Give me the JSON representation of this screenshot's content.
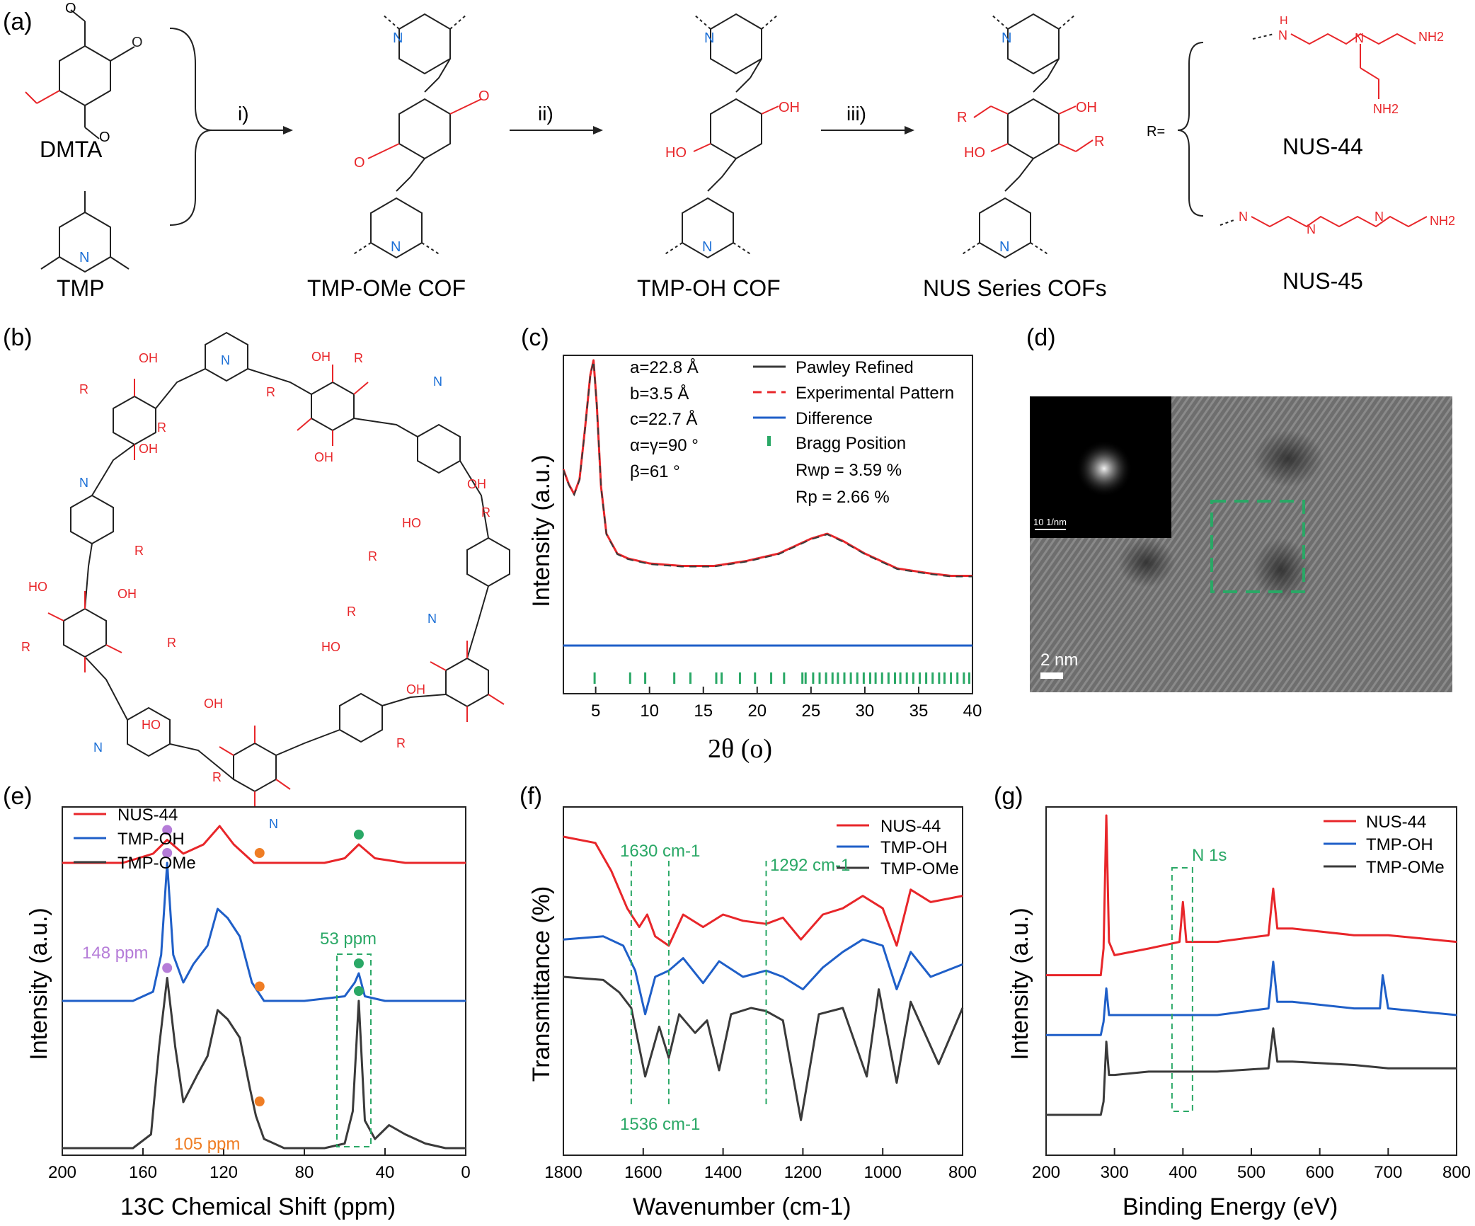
{
  "panels": {
    "a": "(a)",
    "b": "(b)",
    "c": "(c)",
    "d": "(d)",
    "e": "(e)",
    "f": "(f)",
    "g": "(g)"
  },
  "scheme": {
    "dmta": "DMTA",
    "tmp": "TMP",
    "step1": "i)",
    "step2": "ii)",
    "step3": "iii)",
    "tmp_ome_cof": "TMP-OMe COF",
    "tmp_oh_cof": "TMP-OH COF",
    "nus_series": "NUS Series COFs",
    "r_equals": "R=",
    "nus44": "NUS-44",
    "nus45": "NUS-45",
    "atom_N": "N",
    "atom_OH": "OH",
    "atom_HO": "HO",
    "atom_R": "R",
    "atom_NH2": "NH2",
    "atom_H": "H",
    "atom_O": "O"
  },
  "colors": {
    "red": "#e8262a",
    "blue": "#1f5fc8",
    "dark": "#3a3a3a",
    "green": "#2aa866",
    "purple": "#b57cd8",
    "orange": "#ef7d24",
    "nitrogen_blue": "#1b6fd6"
  },
  "chart_data": [
    {
      "panel": "c",
      "type": "line",
      "xlabel": "2θ (o)",
      "ylabel": "Intensity (a.u.)",
      "xlim": [
        2,
        40
      ],
      "xticks": [
        "5",
        "10",
        "15",
        "20",
        "25",
        "30",
        "35",
        "40"
      ],
      "legend": [
        "Pawley Refined",
        "Experimental Pattern",
        "Difference",
        "Bragg Position"
      ],
      "params": [
        "a=22.8 Å",
        "b=3.5 Å",
        "c=22.7 Å",
        "α=γ=90 °",
        "β=61 °"
      ],
      "rwp": "Rwp = 3.59 %",
      "rp": "Rp = 2.66 %",
      "series": [
        {
          "name": "Experimental Pattern",
          "x": [
            2,
            2.5,
            3,
            3.5,
            4,
            4.5,
            4.8,
            5.1,
            5.5,
            6,
            7,
            8,
            10,
            13,
            16,
            19,
            22,
            25,
            26.5,
            28,
            30,
            33,
            36,
            38,
            40
          ],
          "y": [
            0.62,
            0.56,
            0.52,
            0.58,
            0.78,
            1.0,
            1.06,
            0.88,
            0.55,
            0.36,
            0.28,
            0.26,
            0.24,
            0.23,
            0.23,
            0.25,
            0.28,
            0.34,
            0.36,
            0.33,
            0.28,
            0.22,
            0.2,
            0.19,
            0.19
          ]
        },
        {
          "name": "Difference",
          "x": [
            2,
            40
          ],
          "y": [
            0.0,
            0.0
          ]
        }
      ],
      "bragg_positions": [
        4.9,
        8.2,
        9.6,
        12.3,
        13.8,
        16.2,
        16.7,
        18.4,
        19.8,
        21.3,
        22.5,
        24.2,
        24.5,
        25.2,
        25.8,
        26.4,
        27.0,
        27.5,
        28.1,
        28.7,
        29.3,
        29.9,
        30.5,
        31.0,
        31.6,
        32.2,
        32.8,
        33.3,
        33.9,
        34.5,
        35.1,
        35.7,
        36.3,
        36.9,
        37.4,
        38.0,
        38.6,
        39.2,
        39.7
      ]
    },
    {
      "panel": "d",
      "type": "heatmap",
      "scale_bar": "2 nm",
      "fft_scale": "10 1/nm"
    },
    {
      "panel": "e",
      "type": "line",
      "xlabel": "13C Chemical Shift (ppm)",
      "ylabel": "Intensity (a.u.)",
      "xlim": [
        200,
        0
      ],
      "xticks": [
        "200",
        "160",
        "120",
        "80",
        "40",
        "0"
      ],
      "legend": [
        "NUS-44",
        "TMP-OH",
        "TMP-OMe"
      ],
      "annotations": [
        "148 ppm",
        "53 ppm",
        "105 ppm"
      ],
      "series": [
        {
          "name": "NUS-44",
          "x": [
            200,
            170,
            155,
            148,
            140,
            130,
            122,
            115,
            105,
            90,
            70,
            60,
            53,
            45,
            30,
            10,
            0
          ],
          "y": [
            0.62,
            0.62,
            0.64,
            0.67,
            0.64,
            0.66,
            0.7,
            0.66,
            0.62,
            0.62,
            0.62,
            0.63,
            0.66,
            0.63,
            0.62,
            0.62,
            0.62
          ]
        },
        {
          "name": "TMP-OH",
          "x": [
            200,
            165,
            155,
            151,
            148,
            145,
            140,
            135,
            128,
            123,
            118,
            112,
            106,
            100,
            80,
            60,
            55,
            53,
            50,
            40,
            20,
            0
          ],
          "y": [
            0.32,
            0.32,
            0.34,
            0.42,
            0.62,
            0.42,
            0.36,
            0.4,
            0.44,
            0.52,
            0.5,
            0.46,
            0.36,
            0.32,
            0.32,
            0.33,
            0.36,
            0.38,
            0.33,
            0.32,
            0.32,
            0.32
          ]
        },
        {
          "name": "TMP-OMe",
          "x": [
            200,
            165,
            156,
            152,
            148,
            144,
            140,
            133,
            128,
            123,
            118,
            112,
            107,
            104,
            100,
            90,
            70,
            60,
            56,
            53,
            50,
            45,
            38,
            30,
            20,
            10,
            0
          ],
          "y": [
            0.0,
            0.0,
            0.03,
            0.22,
            0.37,
            0.22,
            0.1,
            0.16,
            0.2,
            0.3,
            0.28,
            0.24,
            0.13,
            0.07,
            0.02,
            0.0,
            0.0,
            0.01,
            0.08,
            0.32,
            0.06,
            0.02,
            0.05,
            0.03,
            0.01,
            0.0,
            0.0
          ]
        }
      ]
    },
    {
      "panel": "f",
      "type": "line",
      "xlabel": "Wavenumber (cm-1)",
      "ylabel": "Transmittance (%)",
      "xlim": [
        1800,
        800
      ],
      "xticks": [
        "1800",
        "1600",
        "1400",
        "1200",
        "1000",
        "800"
      ],
      "legend": [
        "NUS-44",
        "TMP-OH",
        "TMP-OMe"
      ],
      "annotations": [
        "1630 cm-1",
        "1292 cm-1",
        "1536 cm-1"
      ],
      "series": [
        {
          "name": "NUS-44",
          "x": [
            1800,
            1720,
            1680,
            1640,
            1610,
            1590,
            1570,
            1536,
            1500,
            1450,
            1400,
            1350,
            1292,
            1250,
            1205,
            1150,
            1100,
            1050,
            1000,
            965,
            930,
            880,
            800
          ],
          "y": [
            0.95,
            0.93,
            0.84,
            0.72,
            0.66,
            0.7,
            0.63,
            0.6,
            0.7,
            0.66,
            0.7,
            0.68,
            0.67,
            0.69,
            0.62,
            0.7,
            0.72,
            0.76,
            0.72,
            0.6,
            0.78,
            0.74,
            0.76
          ]
        },
        {
          "name": "TMP-OH",
          "x": [
            1800,
            1700,
            1650,
            1620,
            1595,
            1570,
            1536,
            1500,
            1450,
            1410,
            1350,
            1292,
            1250,
            1200,
            1150,
            1100,
            1050,
            1000,
            965,
            930,
            880,
            800
          ],
          "y": [
            0.62,
            0.63,
            0.6,
            0.52,
            0.38,
            0.5,
            0.52,
            0.56,
            0.48,
            0.55,
            0.5,
            0.52,
            0.5,
            0.46,
            0.53,
            0.58,
            0.62,
            0.6,
            0.46,
            0.58,
            0.5,
            0.54
          ]
        },
        {
          "name": "TMP-OMe",
          "x": [
            1800,
            1700,
            1660,
            1630,
            1595,
            1560,
            1536,
            1510,
            1470,
            1440,
            1410,
            1380,
            1330,
            1292,
            1250,
            1205,
            1160,
            1100,
            1040,
            1010,
            965,
            930,
            860,
            800
          ],
          "y": [
            0.5,
            0.49,
            0.45,
            0.4,
            0.18,
            0.34,
            0.24,
            0.38,
            0.32,
            0.36,
            0.2,
            0.38,
            0.4,
            0.39,
            0.36,
            0.04,
            0.38,
            0.4,
            0.18,
            0.46,
            0.16,
            0.42,
            0.22,
            0.4
          ]
        }
      ]
    },
    {
      "panel": "g",
      "type": "line",
      "xlabel": "Binding Energy (eV)",
      "ylabel": "Intensity (a.u.)",
      "xlim": [
        200,
        800
      ],
      "xticks": [
        "200",
        "300",
        "400",
        "500",
        "600",
        "700",
        "800"
      ],
      "legend": [
        "NUS-44",
        "TMP-OH",
        "TMP-OMe"
      ],
      "annotations": [
        "N 1s"
      ],
      "series": [
        {
          "name": "NUS-44",
          "x": [
            200,
            280,
            284,
            288,
            292,
            300,
            350,
            395,
            400,
            405,
            450,
            525,
            532,
            538,
            560,
            650,
            700,
            800
          ],
          "y": [
            0.52,
            0.52,
            0.6,
            1.0,
            0.62,
            0.58,
            0.6,
            0.62,
            0.74,
            0.62,
            0.62,
            0.64,
            0.78,
            0.66,
            0.66,
            0.64,
            0.64,
            0.62
          ]
        },
        {
          "name": "TMP-OH",
          "x": [
            200,
            280,
            284,
            288,
            292,
            300,
            350,
            400,
            450,
            525,
            532,
            538,
            560,
            650,
            688,
            692,
            700,
            800
          ],
          "y": [
            0.34,
            0.34,
            0.38,
            0.48,
            0.4,
            0.4,
            0.4,
            0.4,
            0.4,
            0.42,
            0.56,
            0.44,
            0.44,
            0.42,
            0.42,
            0.52,
            0.42,
            0.4
          ]
        },
        {
          "name": "TMP-OMe",
          "x": [
            200,
            280,
            284,
            288,
            292,
            300,
            350,
            400,
            450,
            525,
            532,
            538,
            560,
            650,
            700,
            800
          ],
          "y": [
            0.1,
            0.1,
            0.14,
            0.32,
            0.22,
            0.22,
            0.23,
            0.23,
            0.23,
            0.24,
            0.36,
            0.26,
            0.26,
            0.25,
            0.24,
            0.24
          ]
        }
      ]
    }
  ]
}
